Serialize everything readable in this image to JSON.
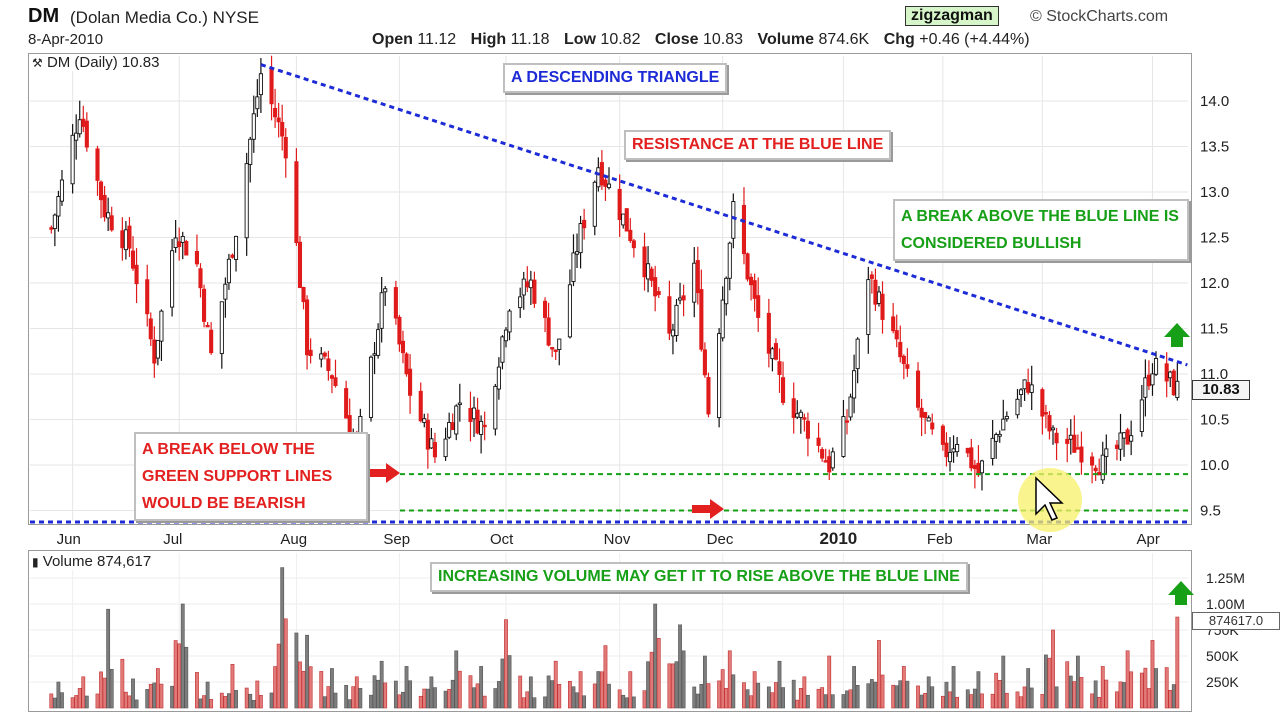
{
  "header": {
    "ticker": "DM",
    "company": "(Dolan Media Co.) NYSE",
    "date": "8-Apr-2010",
    "brand": "zigzagman",
    "site": "© StockCharts.com",
    "quote": {
      "open_label": "Open",
      "open": "11.12",
      "high_label": "High",
      "high": "11.18",
      "low_label": "Low",
      "low": "10.82",
      "close_label": "Close",
      "close": "10.83",
      "volume_label": "Volume",
      "volume": "874.6K",
      "chg_label": "Chg",
      "chg": "+0.46 (+4.44%)"
    }
  },
  "price_panel": {
    "legend": "DM (Daily) 10.83",
    "last_price": "10.83"
  },
  "volume_panel": {
    "legend": "Volume 874,617",
    "last_volume": "874617.0"
  },
  "annotations": {
    "triangle": "A DESCENDING TRIANGLE",
    "resistance": "RESISTANCE AT THE BLUE LINE",
    "break_above": "A BREAK ABOVE THE BLUE LINE IS CONSIDERED BULLISH",
    "break_below": "A BREAK BELOW THE GREEN SUPPORT LINES WOULD BE BEARISH",
    "volume": "INCREASING VOLUME MAY GET IT TO RISE ABOVE THE BLUE LINE"
  },
  "colors": {
    "up": "#111111",
    "down": "#e01b1b",
    "resistance_line": "#1d2bd6",
    "support_line": "#17a017",
    "vol_up": "#7d7d7d",
    "vol_down": "#e27a7a",
    "arrow_red": "#e32020",
    "arrow_green": "#17a017",
    "highlight": "#f8f06a"
  },
  "chart_data": [
    {
      "type": "candlestick",
      "title": "DM (Daily) 10.83",
      "x_tick_labels": [
        "Jun",
        "Jul",
        "Aug",
        "Sep",
        "Oct",
        "Nov",
        "Dec",
        "2010",
        "Feb",
        "Mar",
        "Apr"
      ],
      "y_tick_labels": [
        "9.5",
        "10.0",
        "10.5",
        "11.0",
        "11.5",
        "12.0",
        "12.5",
        "13.0",
        "13.5",
        "14.0"
      ],
      "ylim": [
        9.3,
        14.5
      ],
      "grid": true,
      "close_path": [
        {
          "x": "2009-05-26",
          "y": 12.6
        },
        {
          "x": "2009-06-03",
          "y": 13.9
        },
        {
          "x": "2009-06-10",
          "y": 12.8
        },
        {
          "x": "2009-06-17",
          "y": 12.4
        },
        {
          "x": "2009-06-24",
          "y": 11.2
        },
        {
          "x": "2009-06-30",
          "y": 12.6
        },
        {
          "x": "2009-07-06",
          "y": 12.2
        },
        {
          "x": "2009-07-10",
          "y": 11.2
        },
        {
          "x": "2009-07-17",
          "y": 12.6
        },
        {
          "x": "2009-07-24",
          "y": 14.3
        },
        {
          "x": "2009-07-31",
          "y": 13.5
        },
        {
          "x": "2009-08-06",
          "y": 11.3
        },
        {
          "x": "2009-08-13",
          "y": 11.0
        },
        {
          "x": "2009-08-20",
          "y": 10.2
        },
        {
          "x": "2009-08-28",
          "y": 12.0
        },
        {
          "x": "2009-09-04",
          "y": 10.8
        },
        {
          "x": "2009-09-11",
          "y": 10.1
        },
        {
          "x": "2009-09-18",
          "y": 10.7
        },
        {
          "x": "2009-09-25",
          "y": 10.4
        },
        {
          "x": "2009-10-02",
          "y": 11.8
        },
        {
          "x": "2009-10-08",
          "y": 12.0
        },
        {
          "x": "2009-10-15",
          "y": 11.2
        },
        {
          "x": "2009-10-21",
          "y": 12.4
        },
        {
          "x": "2009-10-27",
          "y": 13.3
        },
        {
          "x": "2009-11-02",
          "y": 12.8
        },
        {
          "x": "2009-11-09",
          "y": 12.2
        },
        {
          "x": "2009-11-16",
          "y": 11.4
        },
        {
          "x": "2009-11-23",
          "y": 12.2
        },
        {
          "x": "2009-11-27",
          "y": 10.6
        },
        {
          "x": "2009-12-04",
          "y": 12.8
        },
        {
          "x": "2009-12-11",
          "y": 11.6
        },
        {
          "x": "2009-12-18",
          "y": 10.8
        },
        {
          "x": "2009-12-25",
          "y": 10.4
        },
        {
          "x": "2009-12-31",
          "y": 10.0
        },
        {
          "x": "2010-01-05",
          "y": 10.5
        },
        {
          "x": "2010-01-11",
          "y": 12.1
        },
        {
          "x": "2010-01-18",
          "y": 11.4
        },
        {
          "x": "2010-01-25",
          "y": 10.6
        },
        {
          "x": "2010-02-01",
          "y": 10.1
        },
        {
          "x": "2010-02-05",
          "y": 10.3
        },
        {
          "x": "2010-02-11",
          "y": 9.9
        },
        {
          "x": "2010-02-18",
          "y": 10.5
        },
        {
          "x": "2010-02-25",
          "y": 10.9
        },
        {
          "x": "2010-03-04",
          "y": 10.3
        },
        {
          "x": "2010-03-11",
          "y": 10.2
        },
        {
          "x": "2010-03-18",
          "y": 10.0
        },
        {
          "x": "2010-03-25",
          "y": 10.3
        },
        {
          "x": "2010-04-01",
          "y": 11.1
        },
        {
          "x": "2010-04-08",
          "y": 10.83
        }
      ],
      "resistance_line": [
        {
          "x": "2009-07-24",
          "y": 14.4
        },
        {
          "x": "2010-04-08",
          "y": 11.1
        }
      ],
      "support_lines": [
        {
          "y": 9.9
        },
        {
          "y": 9.5
        }
      ]
    },
    {
      "type": "bar",
      "title": "Volume 874,617",
      "y_tick_labels": [
        "250K",
        "500K",
        "750K",
        "1.00M",
        "1.25M"
      ],
      "ylim": [
        0,
        1400000
      ],
      "bars": [
        {
          "x": "2009-05-26",
          "y": 250000
        },
        {
          "x": "2009-06-02",
          "y": 300000
        },
        {
          "x": "2009-06-09",
          "y": 950000
        },
        {
          "x": "2009-06-16",
          "y": 280000
        },
        {
          "x": "2009-06-23",
          "y": 380000
        },
        {
          "x": "2009-06-30",
          "y": 1000000
        },
        {
          "x": "2009-07-07",
          "y": 250000
        },
        {
          "x": "2009-07-14",
          "y": 420000
        },
        {
          "x": "2009-07-21",
          "y": 260000
        },
        {
          "x": "2009-07-28",
          "y": 1350000
        },
        {
          "x": "2009-08-04",
          "y": 700000
        },
        {
          "x": "2009-08-11",
          "y": 380000
        },
        {
          "x": "2009-08-18",
          "y": 300000
        },
        {
          "x": "2009-08-25",
          "y": 450000
        },
        {
          "x": "2009-09-01",
          "y": 400000
        },
        {
          "x": "2009-09-08",
          "y": 300000
        },
        {
          "x": "2009-09-15",
          "y": 550000
        },
        {
          "x": "2009-09-22",
          "y": 400000
        },
        {
          "x": "2009-09-29",
          "y": 850000
        },
        {
          "x": "2009-10-06",
          "y": 300000
        },
        {
          "x": "2009-10-13",
          "y": 450000
        },
        {
          "x": "2009-10-20",
          "y": 350000
        },
        {
          "x": "2009-10-27",
          "y": 600000
        },
        {
          "x": "2009-11-03",
          "y": 350000
        },
        {
          "x": "2009-11-10",
          "y": 1000000
        },
        {
          "x": "2009-11-17",
          "y": 800000
        },
        {
          "x": "2009-11-24",
          "y": 500000
        },
        {
          "x": "2009-12-01",
          "y": 550000
        },
        {
          "x": "2009-12-08",
          "y": 350000
        },
        {
          "x": "2009-12-15",
          "y": 450000
        },
        {
          "x": "2009-12-22",
          "y": 300000
        },
        {
          "x": "2009-12-29",
          "y": 500000
        },
        {
          "x": "2010-01-05",
          "y": 400000
        },
        {
          "x": "2010-01-12",
          "y": 650000
        },
        {
          "x": "2010-01-19",
          "y": 400000
        },
        {
          "x": "2010-01-26",
          "y": 300000
        },
        {
          "x": "2010-02-02",
          "y": 400000
        },
        {
          "x": "2010-02-09",
          "y": 350000
        },
        {
          "x": "2010-02-16",
          "y": 500000
        },
        {
          "x": "2010-02-23",
          "y": 380000
        },
        {
          "x": "2010-03-02",
          "y": 750000
        },
        {
          "x": "2010-03-09",
          "y": 500000
        },
        {
          "x": "2010-03-16",
          "y": 400000
        },
        {
          "x": "2010-03-23",
          "y": 550000
        },
        {
          "x": "2010-03-30",
          "y": 650000
        },
        {
          "x": "2010-04-08",
          "y": 874617
        }
      ]
    }
  ]
}
